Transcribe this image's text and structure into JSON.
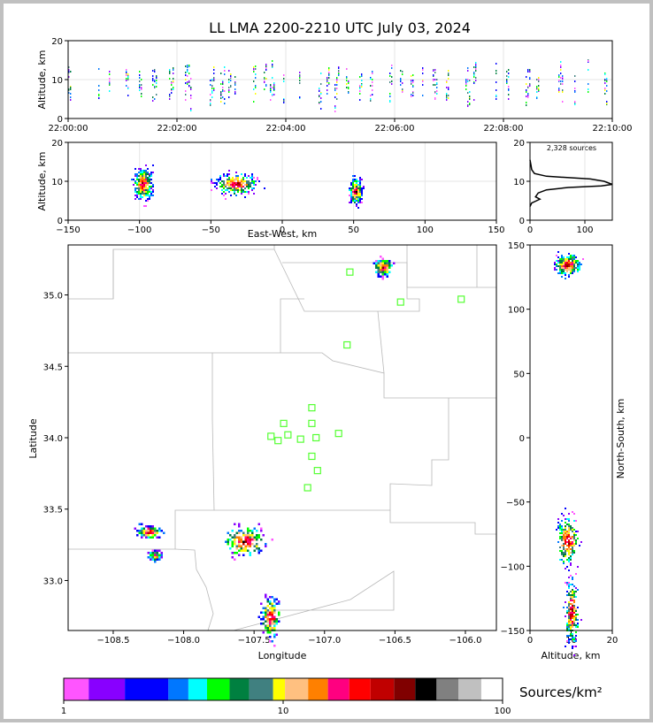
{
  "chart_data": {
    "type": "lightning-mapping-array-plot",
    "title": "LL LMA 2200-2210 UTC July 03, 2024",
    "time_altitude": {
      "type": "scatter",
      "ylabel": "Altitude, km",
      "xlim": [
        "22:00:00",
        "22:10:00"
      ],
      "ylim": [
        0,
        20
      ],
      "x_ticks": [
        "22:00:00",
        "22:02:00",
        "22:04:00",
        "22:06:00",
        "22:08:00",
        "22:10:00"
      ],
      "y_ticks": [
        "0",
        "10",
        "20"
      ],
      "source_columns_min": [
        0.0,
        0.55,
        0.75,
        1.05,
        1.3,
        1.55,
        1.85,
        2.15,
        2.25,
        2.6,
        2.8,
        2.95,
        3.05,
        3.4,
        3.6,
        3.7,
        3.95,
        4.25,
        4.6,
        4.75,
        4.9,
        5.1,
        5.35,
        5.55,
        5.9,
        6.1,
        6.3,
        6.5,
        6.7,
        6.95,
        7.3,
        7.45,
        7.85,
        8.05,
        8.4,
        8.6,
        9.0,
        9.3,
        9.55,
        9.85
      ],
      "typical_altitude_km": 9
    },
    "ew_altitude": {
      "type": "scatter",
      "xlabel": "East-West, km",
      "ylabel": "Altitude, km",
      "xlim": [
        -150,
        150
      ],
      "ylim": [
        0,
        20
      ],
      "x_ticks": [
        "-150",
        "-100",
        "-50",
        "0",
        "50",
        "100",
        "150"
      ],
      "y_ticks": [
        "0",
        "10",
        "20"
      ],
      "clusters": [
        {
          "x_km": -98,
          "alt_km": 9.5,
          "x_spread": 6,
          "alt_spread": 4
        },
        {
          "x_km": -33,
          "alt_km": 9.5,
          "x_spread": 14,
          "alt_spread": 2.5
        },
        {
          "x_km": 51,
          "alt_km": 7.5,
          "x_spread": 4,
          "alt_spread": 3
        }
      ]
    },
    "altitude_histogram": {
      "type": "line",
      "annotation": "2,328 sources",
      "xlim": [
        0,
        150
      ],
      "ylim": [
        0,
        20
      ],
      "x_ticks": [
        "0",
        "100"
      ],
      "y_ticks": [
        "0",
        "10",
        "20"
      ],
      "counts": [
        [
          0,
          15.5
        ],
        [
          2,
          14
        ],
        [
          3,
          13
        ],
        [
          8,
          12
        ],
        [
          30,
          11.3
        ],
        [
          110,
          10.6
        ],
        [
          135,
          10
        ],
        [
          150,
          9.2
        ],
        [
          130,
          8.8
        ],
        [
          70,
          8.4
        ],
        [
          30,
          7.8
        ],
        [
          15,
          7
        ],
        [
          10,
          6
        ],
        [
          18,
          5.4
        ],
        [
          12,
          5
        ],
        [
          3,
          4.4
        ],
        [
          0,
          3.5
        ]
      ]
    },
    "plan_view": {
      "type": "scatter",
      "xlabel": "Longitude",
      "ylabel": "Latitude",
      "xlim": [
        -108.82,
        -105.78
      ],
      "ylim": [
        32.65,
        35.35
      ],
      "x_ticks": [
        "−108.5",
        "−108.0",
        "−107.5",
        "−107.0",
        "−106.5",
        "−106.0"
      ],
      "y_ticks": [
        "33.0",
        "33.5",
        "34.0",
        "34.5",
        "35.0"
      ],
      "stations": [
        [
          -106.82,
          35.16
        ],
        [
          -106.46,
          34.95
        ],
        [
          -106.03,
          34.97
        ],
        [
          -106.84,
          34.65
        ],
        [
          -107.09,
          34.21
        ],
        [
          -107.29,
          34.1
        ],
        [
          -107.09,
          34.1
        ],
        [
          -107.38,
          34.01
        ],
        [
          -107.26,
          34.02
        ],
        [
          -107.33,
          33.98
        ],
        [
          -107.17,
          33.99
        ],
        [
          -107.06,
          34.0
        ],
        [
          -106.9,
          34.03
        ],
        [
          -107.09,
          33.87
        ],
        [
          -107.05,
          33.77
        ],
        [
          -107.12,
          33.65
        ]
      ],
      "clusters": [
        {
          "lon": -106.59,
          "lat": 35.2,
          "dlon": 0.03,
          "dlat": 0.03
        },
        {
          "lon": -108.25,
          "lat": 33.35,
          "dlon": 0.04,
          "dlat": 0.02
        },
        {
          "lon": -108.21,
          "lat": 33.18,
          "dlon": 0.02,
          "dlat": 0.015
        },
        {
          "lon": -107.57,
          "lat": 33.28,
          "dlon": 0.07,
          "dlat": 0.05
        },
        {
          "lon": -107.39,
          "lat": 32.75,
          "dlon": 0.03,
          "dlat": 0.07
        }
      ]
    },
    "ns_altitude": {
      "type": "scatter",
      "xlabel": "Altitude, km",
      "ylabel": "North-South, km",
      "xlim": [
        0,
        20
      ],
      "ylim": [
        -150,
        150
      ],
      "x_ticks": [
        "0",
        "10",
        "20"
      ],
      "y_ticks": [
        "−150",
        "−100",
        "−50",
        "0",
        "50",
        "100",
        "150"
      ],
      "clusters": [
        {
          "alt_km": 9,
          "y_km": 135,
          "alt_spread": 3,
          "y_spread": 4
        },
        {
          "alt_km": 9,
          "y_km": -80,
          "alt_spread": 2.5,
          "y_spread": 9
        },
        {
          "alt_km": 10,
          "y_km": -135,
          "alt_spread": 1.5,
          "y_spread": 12
        }
      ]
    },
    "colorbar": {
      "label": "Sources/km²",
      "scale": "log",
      "range": [
        1,
        100
      ],
      "tick_labels": [
        "1",
        "10",
        "100"
      ],
      "colors": [
        "#ff55ff",
        "#8800ff",
        "#0000ff",
        "#0077ff",
        "#00ffff",
        "#00ff00",
        "#008040",
        "#408080",
        "#ffff00",
        "#ffc080",
        "#ff8000",
        "#ff0080",
        "#ff0000",
        "#c00000",
        "#800000",
        "#000000",
        "#808080",
        "#c0c0c0",
        "#ffffff"
      ]
    }
  }
}
